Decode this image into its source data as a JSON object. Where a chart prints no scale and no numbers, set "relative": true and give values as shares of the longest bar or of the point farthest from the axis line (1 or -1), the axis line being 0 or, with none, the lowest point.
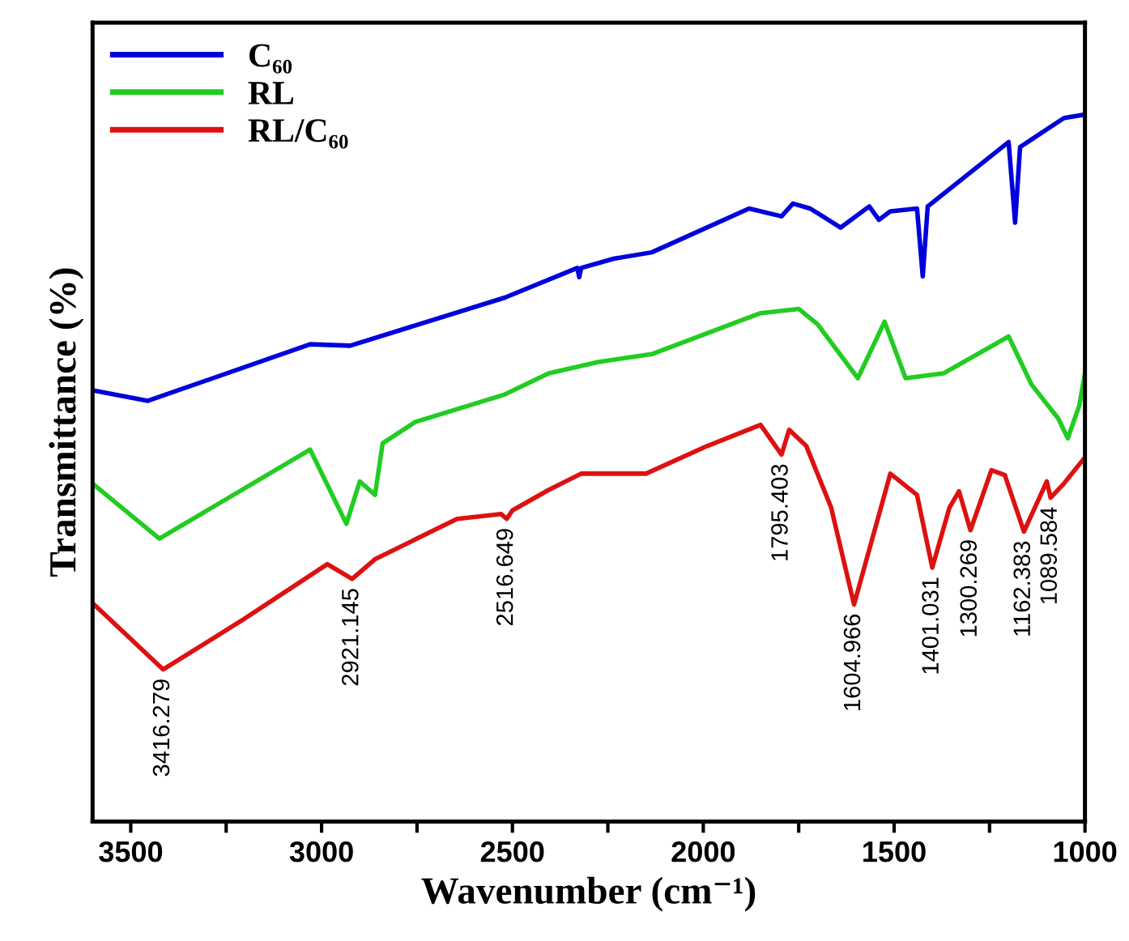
{
  "chart_data": {
    "type": "line",
    "xlabel": "Wavenumber (cm⁻¹)",
    "ylabel": "Transmittance (%)",
    "relative": true,
    "xlim": [
      3600,
      1000
    ],
    "xticks": [
      3500,
      {
        "value": 3250,
        "label": null
      },
      3000,
      {
        "value": 2750,
        "label": null
      },
      2500,
      {
        "value": 2250,
        "label": null
      },
      2000,
      {
        "value": 1750,
        "label": null
      },
      1500,
      {
        "value": 1250,
        "label": null
      },
      1000
    ],
    "legend": "top left",
    "grid": false,
    "line_style": "solid",
    "series": [
      {
        "name": "C₆₀",
        "color": "#0000dd",
        "x": [
          3600,
          3455,
          3030,
          2925,
          2520,
          2330,
          2325,
          2320,
          2235,
          2135,
          1880,
          1795,
          1765,
          1720,
          1640,
          1565,
          1540,
          1510,
          1440,
          1425,
          1412,
          1200,
          1183,
          1170,
          1055,
          1000
        ],
        "values": [
          0.61,
          0.595,
          0.675,
          0.673,
          0.741,
          0.783,
          0.77,
          0.783,
          0.796,
          0.805,
          0.867,
          0.856,
          0.874,
          0.867,
          0.84,
          0.87,
          0.851,
          0.863,
          0.867,
          0.771,
          0.87,
          0.961,
          0.847,
          0.954,
          0.995,
          1.0
        ]
      },
      {
        "name": "RL",
        "color": "#22cc22",
        "x": [
          3600,
          3425,
          3030,
          2935,
          2900,
          2860,
          2840,
          2755,
          2520,
          2405,
          2275,
          2135,
          1850,
          1750,
          1700,
          1595,
          1525,
          1470,
          1370,
          1200,
          1140,
          1070,
          1045,
          1015,
          1000
        ],
        "values": [
          0.478,
          0.4,
          0.526,
          0.421,
          0.481,
          0.462,
          0.535,
          0.565,
          0.604,
          0.634,
          0.65,
          0.661,
          0.719,
          0.725,
          0.703,
          0.627,
          0.707,
          0.627,
          0.634,
          0.686,
          0.618,
          0.57,
          0.542,
          0.588,
          0.634
        ]
      },
      {
        "name": "RL/C₆₀",
        "color": "#dd1111",
        "x": [
          3600,
          3415,
          3210,
          2985,
          2920,
          2860,
          2645,
          2530,
          2515,
          2500,
          2405,
          2320,
          2150,
          1990,
          1850,
          1795,
          1775,
          1730,
          1665,
          1605,
          1510,
          1440,
          1400,
          1355,
          1330,
          1300,
          1245,
          1210,
          1160,
          1100,
          1090,
          1055,
          1000
        ],
        "values": [
          0.309,
          0.215,
          0.284,
          0.364,
          0.343,
          0.371,
          0.428,
          0.435,
          0.428,
          0.44,
          0.469,
          0.492,
          0.492,
          0.531,
          0.561,
          0.519,
          0.554,
          0.531,
          0.444,
          0.307,
          0.492,
          0.462,
          0.359,
          0.444,
          0.467,
          0.412,
          0.497,
          0.49,
          0.41,
          0.481,
          0.458,
          0.478,
          0.515
        ]
      }
    ],
    "annotations": [
      {
        "text": "3416.279",
        "x": 3415,
        "y": 0.215
      },
      {
        "text": "2921.145",
        "x": 2920,
        "y": 0.343
      },
      {
        "text": "2516.649",
        "x": 2515,
        "y": 0.428
      },
      {
        "text": "1795.403",
        "x": 1795,
        "y": 0.519
      },
      {
        "text": "1604.966",
        "x": 1605,
        "y": 0.307
      },
      {
        "text": "1401.031",
        "x": 1400,
        "y": 0.359
      },
      {
        "text": "1300.269",
        "x": 1300,
        "y": 0.412
      },
      {
        "text": "1162.383",
        "x": 1160,
        "y": 0.41
      },
      {
        "text": "1089.584",
        "x": 1090,
        "y": 0.458
      }
    ]
  }
}
